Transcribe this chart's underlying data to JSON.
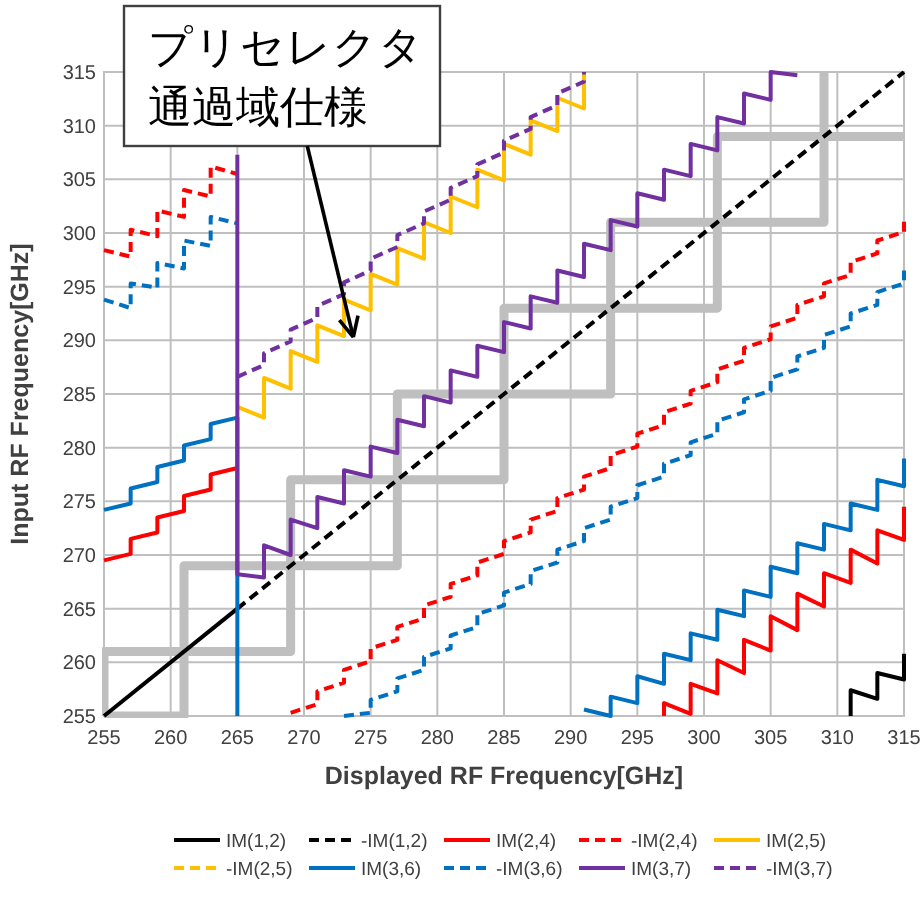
{
  "chart_data": {
    "type": "line",
    "xlabel": "Displayed RF Frequency[GHz]",
    "ylabel": "Input RF Frequency[GHz]",
    "xlim": [
      255,
      315
    ],
    "ylim": [
      255,
      315
    ],
    "xticks": [
      255,
      260,
      265,
      270,
      275,
      280,
      285,
      290,
      295,
      300,
      305,
      310,
      315
    ],
    "yticks": [
      255,
      260,
      265,
      270,
      275,
      280,
      285,
      290,
      295,
      300,
      305,
      310,
      315
    ],
    "grid": true,
    "legend": "bottom",
    "annotations": [
      {
        "text": "プリセレクタ通過域仕様",
        "x": 273.7,
        "y": 290.3
      }
    ],
    "series": [
      {
        "color": "#bfbfbf",
        "x": [
          255,
          255,
          261,
          261,
          269,
          269,
          277,
          277,
          285,
          285,
          293,
          293,
          301,
          301,
          309,
          309
        ],
        "values": [
          255,
          261,
          261,
          269,
          269,
          277,
          277,
          285,
          285,
          293,
          293,
          301,
          301,
          309,
          309,
          315
        ]
      },
      {
        "color": "#bfbfbf",
        "x": [
          255,
          261,
          261,
          269,
          269,
          277,
          277,
          285,
          285,
          293,
          293,
          301,
          301,
          309,
          309,
          315
        ],
        "values": [
          255,
          255,
          261,
          261,
          269,
          269,
          277,
          277,
          285,
          285,
          293,
          293,
          301,
          301,
          309,
          309
        ]
      },
      {
        "name": "IM(1,2)",
        "color": "#000000",
        "x": [
          255,
          265
        ],
        "values": [
          255,
          265
        ]
      },
      {
        "color": "#000000",
        "x": [
          311,
          311,
          313,
          313,
          315,
          315
        ],
        "values": [
          255,
          257.4,
          256.6,
          259.0,
          258.4,
          260.8
        ]
      },
      {
        "name": "-IM(1,2)",
        "color": "#000000",
        "line_style": "dashed",
        "x": [
          265,
          315
        ],
        "values": [
          265,
          315
        ]
      },
      {
        "name": "IM(2,4)",
        "color": "#ff0000",
        "x": [
          255,
          257,
          257,
          259,
          259,
          261,
          261,
          263,
          263,
          265
        ],
        "values": [
          269.5,
          270.1,
          271.5,
          272.1,
          273.5,
          274.1,
          275.5,
          276.1,
          277.5,
          278.1
        ]
      },
      {
        "color": "#ff0000",
        "x": [
          297,
          297,
          299,
          299,
          301,
          301,
          303,
          303,
          305,
          305,
          307,
          307,
          309,
          309,
          311,
          311,
          313,
          313,
          315,
          315
        ],
        "values": [
          255,
          256.2,
          255.2,
          258.0,
          257.1,
          260.2,
          259.0,
          262.1,
          261.1,
          264.3,
          263.0,
          266.4,
          265.2,
          268.3,
          267.4,
          270.5,
          269.2,
          272.3,
          271.4,
          274.5
        ]
      },
      {
        "name": "-IM(2,4)",
        "color": "#ff0000",
        "line_style": "dashed",
        "x": [
          255,
          257,
          257,
          259,
          259,
          261,
          261,
          263,
          263,
          265
        ],
        "values": [
          298.4,
          297.8,
          300.3,
          299.7,
          302.1,
          301.5,
          304.0,
          303.4,
          306.2,
          305.5
        ]
      },
      {
        "color": "#ff0000",
        "line_style": "dashed",
        "x": [
          269,
          271,
          271,
          273,
          273,
          275,
          275,
          277,
          277,
          279,
          279,
          281,
          281,
          283,
          283,
          285,
          285,
          287,
          287,
          289,
          289,
          291,
          291,
          293,
          293,
          295,
          295,
          297,
          297,
          299,
          299,
          301,
          301,
          303,
          303,
          305,
          305,
          307,
          307,
          309,
          309,
          311,
          311,
          313,
          313,
          315,
          315
        ],
        "values": [
          255.3,
          256.1,
          257.3,
          258.1,
          259.3,
          260.1,
          261.3,
          262.1,
          263.3,
          264.1,
          265.3,
          266.1,
          267.3,
          268.1,
          269.3,
          270.1,
          271.3,
          272.1,
          273.3,
          274.1,
          275.3,
          276.1,
          277.3,
          278.1,
          279.3,
          280.1,
          281.3,
          282.1,
          283.3,
          284.1,
          285.3,
          286.1,
          287.3,
          288.1,
          289.3,
          290.1,
          291.3,
          292.1,
          293.3,
          294.1,
          295.3,
          296.1,
          297.3,
          298.1,
          299.3,
          300.1,
          301.3
        ]
      },
      {
        "name": "IM(2,5)",
        "color": "#ffc000",
        "x": [
          265,
          267,
          267,
          269,
          269,
          271,
          271,
          273,
          273,
          275,
          275,
          277,
          277,
          279,
          279,
          281,
          281,
          283,
          283,
          285,
          285,
          287,
          287,
          289,
          289,
          291,
          291
        ],
        "values": [
          283.8,
          282.8,
          286.5,
          285.5,
          289.0,
          288.0,
          291.4,
          290.4,
          293.8,
          292.8,
          296.2,
          295.2,
          298.6,
          297.6,
          301.0,
          300.0,
          303.4,
          302.4,
          305.9,
          304.9,
          308.3,
          307.3,
          310.5,
          309.5,
          312.6,
          311.6,
          315
        ]
      },
      {
        "name": "-IM(2,5)",
        "color": "#ffc000",
        "line_style": "dashed"
      },
      {
        "name": "IM(3,6)",
        "color": "#0070c0",
        "x": [
          255,
          257,
          257,
          259,
          259,
          261,
          261,
          263,
          263,
          265,
          265
        ],
        "values": [
          274.2,
          274.8,
          276.2,
          276.8,
          278.2,
          278.8,
          280.2,
          280.8,
          282.2,
          282.8,
          255
        ]
      },
      {
        "color": "#0070c0",
        "x": [
          291,
          293,
          293,
          295,
          295,
          297,
          297,
          299,
          299,
          301,
          301,
          303,
          303,
          305,
          305,
          307,
          307,
          309,
          309,
          311,
          311,
          313,
          313,
          315,
          315
        ],
        "values": [
          255.6,
          255.0,
          256.8,
          256.2,
          258.7,
          258.0,
          260.8,
          260.2,
          262.7,
          262.1,
          264.9,
          264.3,
          266.7,
          266.1,
          268.9,
          268.3,
          271.1,
          270.5,
          272.9,
          272.3,
          274.8,
          274.2,
          277.0,
          276.4,
          279.0
        ]
      },
      {
        "name": "-IM(3,6)",
        "color": "#0070c0",
        "line_style": "dashed",
        "x": [
          255,
          257,
          257,
          259,
          259,
          261,
          261,
          263,
          263,
          265
        ],
        "values": [
          293.8,
          293.0,
          295.3,
          294.9,
          297.2,
          296.7,
          299.3,
          298.8,
          301.5,
          300.9
        ]
      },
      {
        "color": "#0070c0",
        "line_style": "dashed",
        "x": [
          273,
          275,
          275,
          277,
          277,
          279,
          279,
          281,
          281,
          283,
          283,
          285,
          285,
          287,
          287,
          289,
          289,
          291,
          291,
          293,
          293,
          295,
          295,
          297,
          297,
          299,
          299,
          301,
          301,
          303,
          303,
          305,
          305,
          307,
          307,
          309,
          309,
          311,
          311,
          313,
          313,
          315,
          315
        ],
        "values": [
          255,
          255.3,
          256.5,
          257.3,
          258.5,
          259.3,
          260.5,
          261.3,
          262.5,
          263.3,
          264.5,
          265.3,
          266.5,
          267.3,
          268.5,
          269.3,
          270.5,
          271.3,
          272.5,
          273.3,
          274.5,
          275.3,
          276.5,
          277.3,
          278.5,
          279.3,
          280.5,
          281.3,
          282.5,
          283.3,
          284.5,
          285.3,
          286.5,
          287.3,
          288.5,
          289.3,
          290.5,
          291.3,
          292.5,
          293.3,
          294.5,
          295.3,
          296.5
        ]
      },
      {
        "name": "IM(3,7)",
        "color": "#7030a0",
        "x": [
          265,
          265,
          267,
          267,
          269,
          269,
          271,
          271,
          273,
          273,
          275,
          275,
          277,
          277,
          279,
          279,
          281,
          281,
          283,
          283,
          285,
          285,
          287,
          287,
          289,
          289,
          291,
          291,
          293,
          293,
          295,
          295,
          297,
          297,
          299,
          299,
          301,
          301,
          303,
          303,
          305,
          305,
          307
        ],
        "values": [
          307.3,
          268.2,
          267.9,
          270.9,
          270.0,
          273.3,
          272.5,
          275.4,
          274.8,
          277.9,
          277.3,
          280.1,
          279.5,
          282.6,
          282.0,
          284.8,
          284.2,
          287.2,
          286.6,
          289.5,
          288.9,
          291.7,
          291.1,
          294.1,
          293.5,
          296.5,
          295.9,
          299.0,
          298.4,
          301.2,
          300.6,
          303.7,
          303.1,
          305.9,
          305.3,
          308.3,
          307.7,
          310.8,
          310.2,
          313.0,
          312.4,
          315,
          314.7
        ]
      },
      {
        "name": "-IM(3,7)",
        "color": "#7030a0",
        "line_style": "dashed",
        "x": [
          265,
          267,
          267,
          269,
          269,
          271,
          271,
          273,
          273,
          275,
          275,
          277,
          277,
          279,
          279,
          281,
          281,
          283,
          283,
          285,
          285,
          287,
          287,
          289,
          289,
          291,
          291
        ],
        "values": [
          286.6,
          287.7,
          288.8,
          289.9,
          291.0,
          292.1,
          293.2,
          294.3,
          295.4,
          296.5,
          297.6,
          298.7,
          299.8,
          300.9,
          302.0,
          303.1,
          304.2,
          305.3,
          306.4,
          307.5,
          308.6,
          309.7,
          310.8,
          311.9,
          313.0,
          314.1,
          315
        ]
      }
    ]
  }
}
